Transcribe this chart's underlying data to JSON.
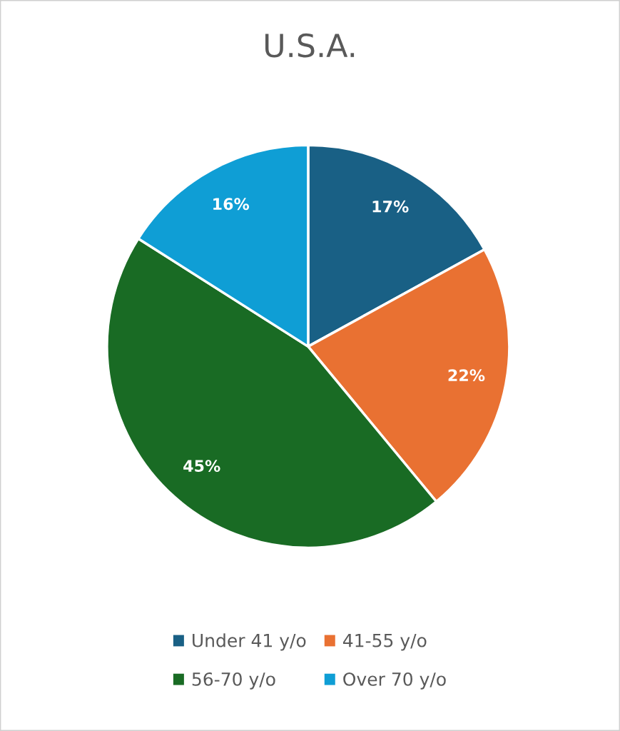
{
  "chart_data": {
    "type": "pie",
    "title": "U.S.A.",
    "categories": [
      "Under 41 y/o",
      "41-55 y/o",
      "56-70 y/o",
      "Over 70 y/o"
    ],
    "values": [
      17,
      22,
      45,
      16
    ],
    "value_labels": [
      "17%",
      "22%",
      "45%",
      "16%"
    ],
    "colors": [
      "#196085",
      "#e97132",
      "#196b24",
      "#0f9ed5"
    ],
    "legend": "bottom"
  }
}
